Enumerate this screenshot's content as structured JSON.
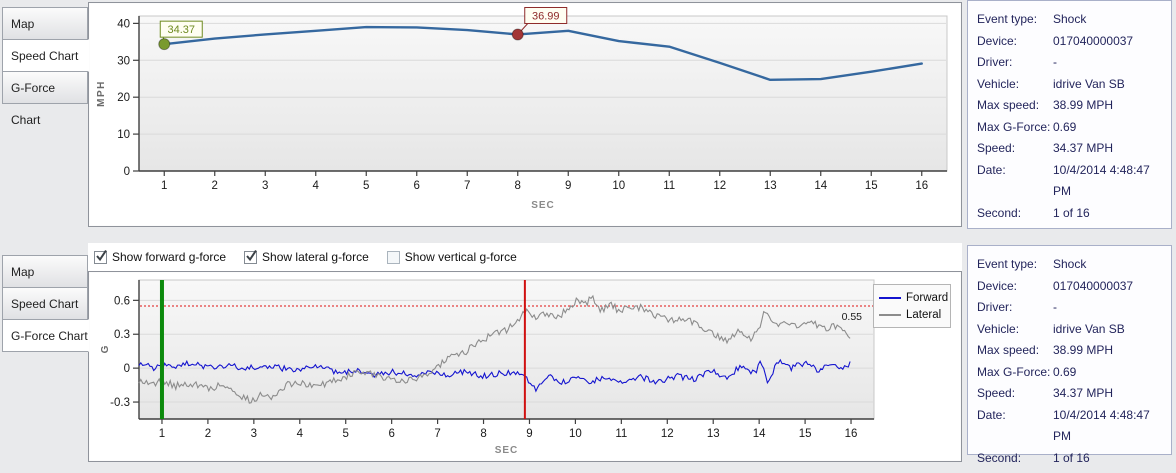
{
  "tabs": {
    "items": [
      "Map",
      "Speed Chart",
      "G-Force Chart"
    ]
  },
  "top_panel": {
    "selected_tab": "Speed Chart"
  },
  "bottom_panel": {
    "selected_tab": "G-Force Chart",
    "checkboxes": [
      {
        "label": "Show forward g-force",
        "checked": true
      },
      {
        "label": "Show lateral g-force",
        "checked": true
      },
      {
        "label": "Show vertical g-force",
        "checked": false
      }
    ]
  },
  "info_panel": {
    "rows": [
      {
        "label": "Event type:",
        "value": "Shock"
      },
      {
        "label": "Device:",
        "value": "017040000037"
      },
      {
        "label": "Driver:",
        "value": "-"
      },
      {
        "label": "Vehicle:",
        "value": "idrive Van SB"
      },
      {
        "label": "Max speed:",
        "value": "38.99 MPH"
      },
      {
        "label": "Max G-Force:",
        "value": "0.69"
      },
      {
        "label": "Speed:",
        "value": "34.37 MPH"
      },
      {
        "label": "Date:",
        "value": "10/4/2014 4:48:47 PM"
      },
      {
        "label": "Second:",
        "value": "1 of 16"
      }
    ]
  },
  "chart_data": [
    {
      "type": "line",
      "title": "",
      "xlabel": "SEC",
      "ylabel": "MPH",
      "x": [
        1,
        2,
        3,
        4,
        5,
        6,
        7,
        8,
        9,
        10,
        11,
        12,
        13,
        14,
        15,
        16
      ],
      "values": [
        34.37,
        35.9,
        37.0,
        38.0,
        38.99,
        38.9,
        38.2,
        36.99,
        38.0,
        35.2,
        33.7,
        29.3,
        24.7,
        24.9,
        26.9,
        29.1
      ],
      "xlim": [
        0.5,
        16.5
      ],
      "ylim": [
        0,
        42
      ],
      "xticks": [
        1,
        2,
        3,
        4,
        5,
        6,
        7,
        8,
        9,
        10,
        11,
        12,
        13,
        14,
        15,
        16
      ],
      "yticks": [
        0,
        10,
        20,
        30,
        40
      ],
      "line_color": "#35689f",
      "grid": true,
      "markers": [
        {
          "x": 1,
          "y": 34.37,
          "label": "34.37",
          "color": "#6f8b21",
          "fill": "#7a9a2e"
        },
        {
          "x": 8,
          "y": 36.99,
          "label": "36.99",
          "color": "#8e2a2a",
          "fill": "#a33536"
        }
      ]
    },
    {
      "type": "line-multi",
      "title": "",
      "xlabel": "SEC",
      "ylabel": "G",
      "xlim": [
        0.5,
        16.5
      ],
      "ylim": [
        -0.45,
        0.78
      ],
      "xticks": [
        1,
        2,
        3,
        4,
        5,
        6,
        7,
        8,
        9,
        10,
        11,
        12,
        13,
        14,
        15,
        16
      ],
      "yticks": [
        -0.3,
        0,
        0.3,
        0.6
      ],
      "grid": true,
      "legend_position": "right",
      "threshold": {
        "y": 0.55,
        "label": "0.55",
        "color": "#e01212"
      },
      "vlines": [
        {
          "x": 1.0,
          "color": "#0c8a0c",
          "width": 4,
          "name": "event-start-marker"
        },
        {
          "x": 8.9,
          "color": "#d01010",
          "width": 2,
          "name": "shock-moment-marker"
        }
      ],
      "series": [
        {
          "name": "Forward",
          "color": "#1414cf",
          "noise": 0.026,
          "seed": 42,
          "keypoints": {
            "t": [
              0.5,
              0.8,
              1.0,
              1.3,
              1.6,
              2.0,
              2.4,
              2.8,
              3.2,
              3.6,
              4.0,
              4.4,
              4.8,
              5.2,
              5.6,
              6.0,
              6.4,
              6.8,
              7.2,
              7.6,
              8.0,
              8.4,
              8.8,
              9.0,
              9.15,
              9.4,
              9.7,
              10.0,
              10.3,
              10.6,
              11.0,
              11.4,
              11.8,
              12.2,
              12.6,
              13.0,
              13.3,
              13.6,
              13.9,
              14.05,
              14.2,
              14.4,
              14.7,
              15.0,
              15.3,
              15.6,
              15.8,
              16.0
            ],
            "v": [
              0.05,
              0.0,
              0.03,
              0.0,
              0.05,
              0.0,
              0.03,
              0.0,
              0.02,
              0.0,
              -0.02,
              0.03,
              -0.04,
              -0.02,
              -0.06,
              -0.03,
              -0.06,
              -0.04,
              -0.06,
              -0.03,
              -0.07,
              -0.04,
              -0.06,
              -0.12,
              -0.2,
              -0.07,
              -0.13,
              -0.08,
              -0.13,
              -0.08,
              -0.13,
              -0.08,
              -0.12,
              -0.07,
              -0.1,
              -0.02,
              -0.1,
              0.03,
              -0.05,
              0.06,
              -0.13,
              0.06,
              0.0,
              0.05,
              -0.02,
              0.06,
              0.0,
              0.05
            ]
          }
        },
        {
          "name": "Lateral",
          "color": "#8c8c8c",
          "noise": 0.032,
          "seed": 7,
          "keypoints": {
            "t": [
              0.5,
              0.8,
              1.0,
              1.3,
              1.6,
              2.0,
              2.3,
              2.6,
              2.8,
              3.0,
              3.2,
              3.45,
              3.7,
              4.0,
              4.3,
              4.6,
              5.0,
              5.3,
              5.6,
              6.0,
              6.4,
              6.7,
              7.0,
              7.3,
              7.6,
              7.9,
              8.2,
              8.5,
              8.8,
              8.95,
              9.1,
              9.3,
              9.6,
              9.85,
              10.05,
              10.2,
              10.35,
              10.55,
              10.75,
              10.95,
              11.2,
              11.5,
              11.8,
              12.1,
              12.4,
              12.7,
              13.0,
              13.3,
              13.6,
              13.8,
              14.0,
              14.15,
              14.35,
              14.6,
              14.85,
              15.1,
              15.4,
              15.7,
              16.0
            ],
            "v": [
              -0.1,
              -0.15,
              -0.11,
              -0.16,
              -0.13,
              -0.18,
              -0.15,
              -0.2,
              -0.27,
              -0.29,
              -0.22,
              -0.26,
              -0.15,
              -0.12,
              -0.17,
              -0.13,
              -0.07,
              -0.03,
              -0.06,
              -0.09,
              -0.11,
              -0.07,
              0.02,
              0.1,
              0.14,
              0.24,
              0.3,
              0.34,
              0.44,
              0.54,
              0.44,
              0.48,
              0.45,
              0.52,
              0.62,
              0.55,
              0.63,
              0.5,
              0.58,
              0.5,
              0.54,
              0.53,
              0.46,
              0.42,
              0.44,
              0.37,
              0.31,
              0.25,
              0.34,
              0.26,
              0.36,
              0.53,
              0.36,
              0.42,
              0.36,
              0.41,
              0.35,
              0.38,
              0.28
            ]
          }
        }
      ]
    }
  ]
}
